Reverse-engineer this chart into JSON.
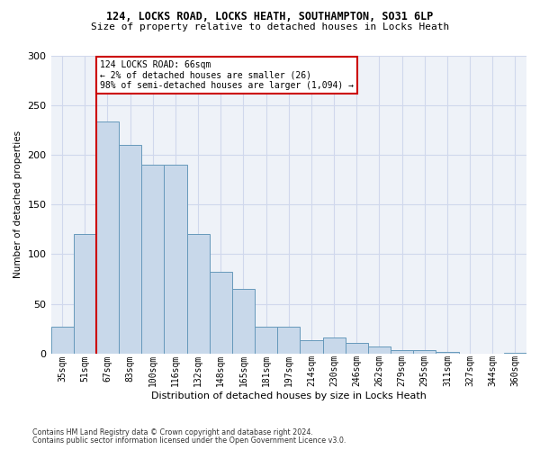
{
  "title_line1": "124, LOCKS ROAD, LOCKS HEATH, SOUTHAMPTON, SO31 6LP",
  "title_line2": "Size of property relative to detached houses in Locks Heath",
  "xlabel": "Distribution of detached houses by size in Locks Heath",
  "ylabel": "Number of detached properties",
  "footnote1": "Contains HM Land Registry data © Crown copyright and database right 2024.",
  "footnote2": "Contains public sector information licensed under the Open Government Licence v3.0.",
  "bar_labels": [
    "35sqm",
    "51sqm",
    "67sqm",
    "83sqm",
    "100sqm",
    "116sqm",
    "132sqm",
    "148sqm",
    "165sqm",
    "181sqm",
    "197sqm",
    "214sqm",
    "230sqm",
    "246sqm",
    "262sqm",
    "279sqm",
    "295sqm",
    "311sqm",
    "327sqm",
    "344sqm",
    "360sqm"
  ],
  "bar_values": [
    27,
    120,
    233,
    210,
    190,
    190,
    120,
    82,
    65,
    27,
    27,
    13,
    16,
    11,
    7,
    3,
    3,
    2,
    0,
    0,
    1
  ],
  "bar_color": "#c8d8ea",
  "bar_edge_color": "#6699bb",
  "grid_color": "#d0d8ec",
  "bg_color": "#eef2f8",
  "vline_color": "#cc0000",
  "annotation_text": "124 LOCKS ROAD: 66sqm\n← 2% of detached houses are smaller (26)\n98% of semi-detached houses are larger (1,094) →",
  "ylim": [
    0,
    300
  ],
  "yticks": [
    0,
    50,
    100,
    150,
    200,
    250,
    300
  ],
  "vline_x": 1.5
}
